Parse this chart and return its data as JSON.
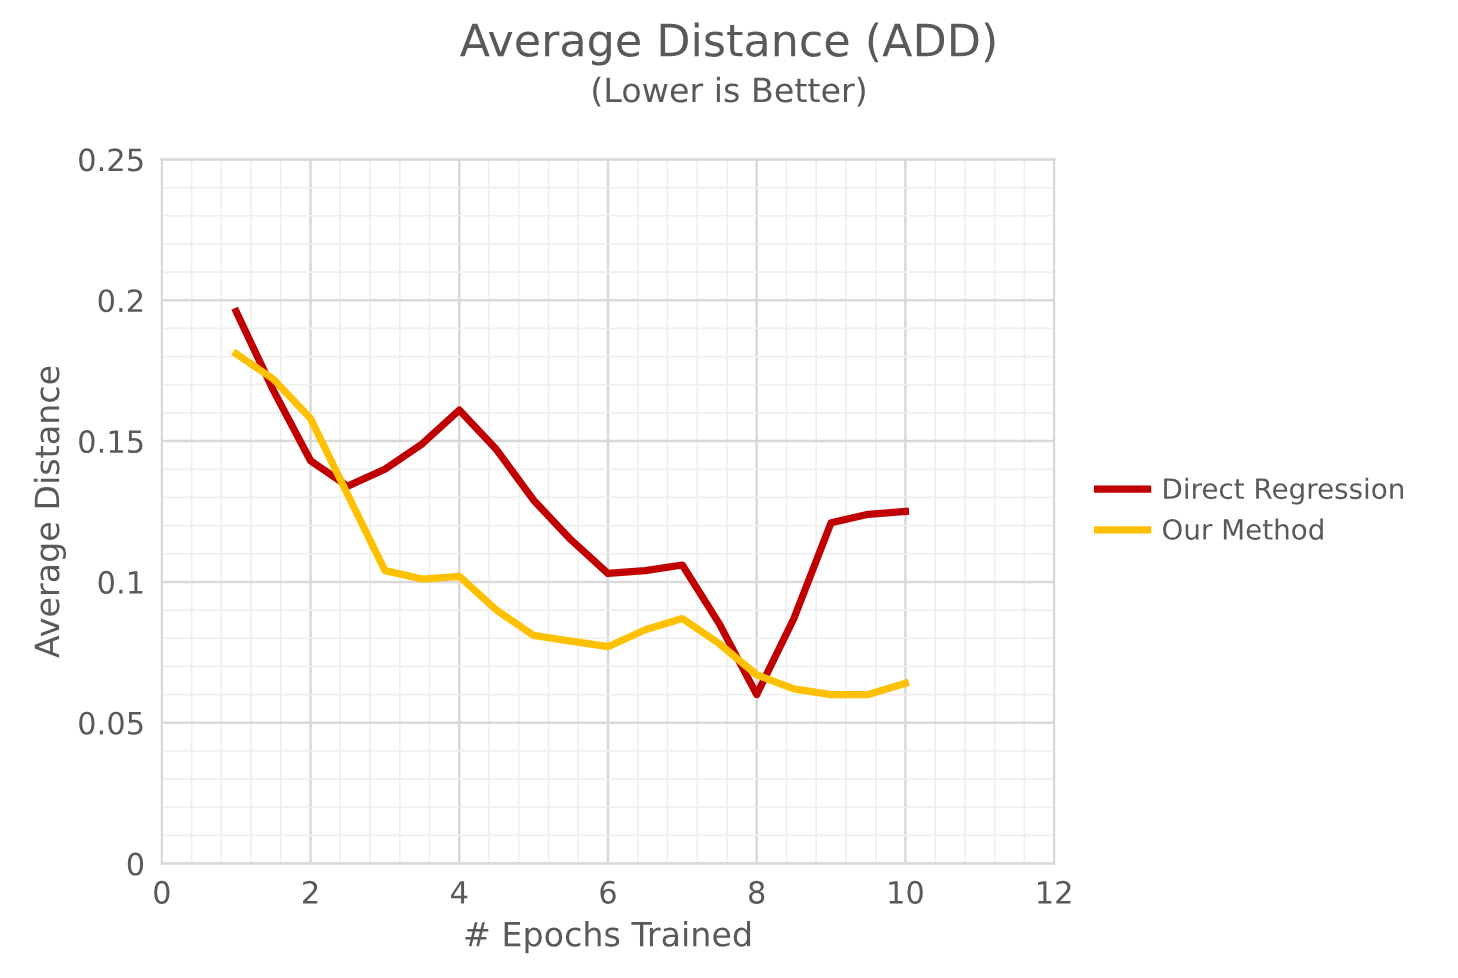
{
  "chart_data": {
    "type": "line",
    "title": "Average Distance (ADD)",
    "subtitle": "(Lower is Better)",
    "xlabel": "# Epochs Trained",
    "ylabel": "Average Distance",
    "x": [
      1,
      1.5,
      2,
      2.5,
      3,
      3.5,
      4,
      4.5,
      5,
      5.5,
      6,
      6.5,
      7,
      7.5,
      8,
      8.5,
      9,
      9.5,
      10
    ],
    "series": [
      {
        "name": "Direct Regression",
        "color": "#c00000",
        "values": [
          0.196,
          0.168,
          0.143,
          0.134,
          0.14,
          0.149,
          0.161,
          0.147,
          0.129,
          0.115,
          0.103,
          0.104,
          0.106,
          0.085,
          0.06,
          0.087,
          0.121,
          0.124,
          0.125
        ]
      },
      {
        "name": "Our Method",
        "color": "#ffc000",
        "values": [
          0.181,
          0.172,
          0.158,
          0.131,
          0.104,
          0.101,
          0.102,
          0.09,
          0.081,
          0.079,
          0.077,
          0.083,
          0.087,
          0.078,
          0.067,
          0.062,
          0.06,
          0.06,
          0.064
        ]
      }
    ],
    "xlim": [
      0,
      12
    ],
    "xticks": [
      0,
      2,
      4,
      6,
      8,
      10,
      12
    ],
    "ylim": [
      0,
      0.25
    ],
    "yticks": [
      0,
      0.05,
      0.1,
      0.15,
      0.2,
      0.25
    ],
    "grid": true,
    "legend": "right",
    "marker": "none",
    "line_style": "solid"
  }
}
